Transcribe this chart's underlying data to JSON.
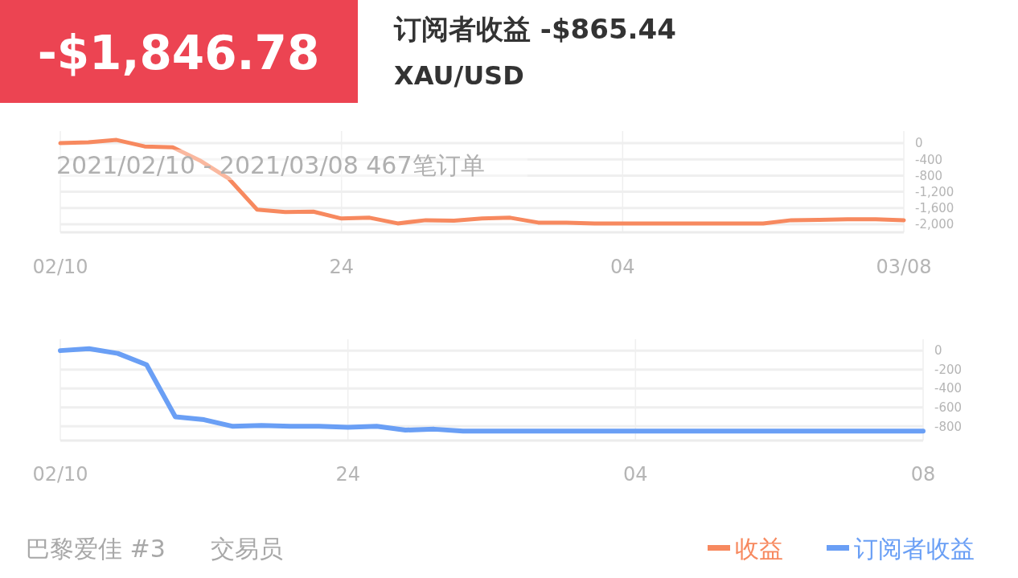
{
  "chart_data": [
    {
      "type": "line",
      "title": "订阅者收益 -$865.44",
      "subtitle": "XAU/USD",
      "annotations": [
        "-$1,846.78",
        "2021/02/10 - 2021/03/08  467笔订单"
      ],
      "categories": [
        "02/10",
        null,
        null,
        null,
        null,
        null,
        null,
        null,
        null,
        null,
        "24",
        null,
        null,
        null,
        null,
        null,
        null,
        null,
        null,
        null,
        "04",
        null,
        null,
        null,
        null,
        null,
        null,
        null,
        null,
        null,
        "03/08"
      ],
      "series": [
        {
          "name": "收益",
          "color": "#f7895f",
          "values": [
            0,
            20,
            80,
            -80,
            -100,
            -440,
            -880,
            -1640,
            -1700,
            -1690,
            -1860,
            -1840,
            -1980,
            -1900,
            -1910,
            -1860,
            -1840,
            -1960,
            -1960,
            -1980,
            -1980,
            -1980,
            -1980,
            -1980,
            -1980,
            -1980,
            -1900,
            -1890,
            -1880,
            -1880,
            -1900
          ]
        }
      ],
      "ylim": [
        -2200,
        300
      ],
      "yticks": [
        0,
        {
          "value": -400,
          "label": "-400"
        },
        {
          "value": -800,
          "label": "-800"
        },
        {
          "value": -1200,
          "label": "-1,200"
        },
        {
          "value": -1600,
          "label": "-1,600"
        },
        {
          "value": -2000,
          "label": "-2,000"
        }
      ],
      "grid": true,
      "legend": "bottom right",
      "marker": "none",
      "line_style": "solid"
    },
    {
      "type": "line",
      "annotations": [
        "巴黎爱佳 #3",
        "交易员"
      ],
      "categories": [
        "02/10",
        null,
        null,
        null,
        null,
        null,
        null,
        null,
        null,
        null,
        "24",
        null,
        null,
        null,
        null,
        null,
        null,
        null,
        null,
        null,
        "04",
        null,
        null,
        null,
        null,
        null,
        null,
        null,
        null,
        null,
        "08"
      ],
      "series": [
        {
          "name": "订阅者收益",
          "color": "#6a9ff5",
          "values": [
            0,
            20,
            -30,
            -150,
            -700,
            -730,
            -800,
            -790,
            -800,
            -800,
            -810,
            -800,
            -840,
            -830,
            -850,
            -850,
            -850,
            -850,
            -850,
            -850,
            -850,
            -850,
            -850,
            -850,
            -850,
            -850,
            -850,
            -850,
            -850,
            -850,
            -850
          ]
        }
      ],
      "ylim": [
        -950,
        120
      ],
      "yticks": [
        0,
        -200,
        -400,
        -600,
        -800
      ],
      "grid": true,
      "legend": "bottom right",
      "marker": "none",
      "line_style": "solid"
    }
  ]
}
